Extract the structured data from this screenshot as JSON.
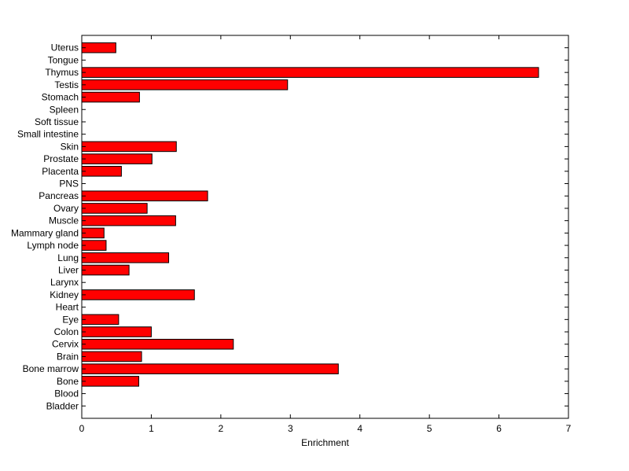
{
  "chart_data": {
    "type": "bar",
    "orientation": "horizontal",
    "title": "",
    "xlabel": "Enrichment",
    "ylabel": "",
    "xlim": [
      0,
      7
    ],
    "xticks": [
      0,
      1,
      2,
      3,
      4,
      5,
      6,
      7
    ],
    "grid": false,
    "legend": "none",
    "bar_color": "#ff0000",
    "categories": [
      "Bladder",
      "Blood",
      "Bone",
      "Bone marrow",
      "Brain",
      "Cervix",
      "Colon",
      "Eye",
      "Heart",
      "Kidney",
      "Larynx",
      "Liver",
      "Lung",
      "Lymph node",
      "Mammary gland",
      "Muscle",
      "Ovary",
      "Pancreas",
      "PNS",
      "Placenta",
      "Prostate",
      "Skin",
      "Small intestine",
      "Soft tissue",
      "Spleen",
      "Stomach",
      "Testis",
      "Thymus",
      "Tongue",
      "Uterus"
    ],
    "values": [
      0,
      0,
      0.82,
      3.69,
      0.86,
      2.18,
      1.0,
      0.53,
      0,
      1.62,
      0,
      0.68,
      1.25,
      0.35,
      0.32,
      1.35,
      0.94,
      1.81,
      0,
      0.57,
      1.01,
      1.36,
      0,
      0,
      0,
      0.83,
      2.96,
      6.57,
      0,
      0.49
    ]
  }
}
